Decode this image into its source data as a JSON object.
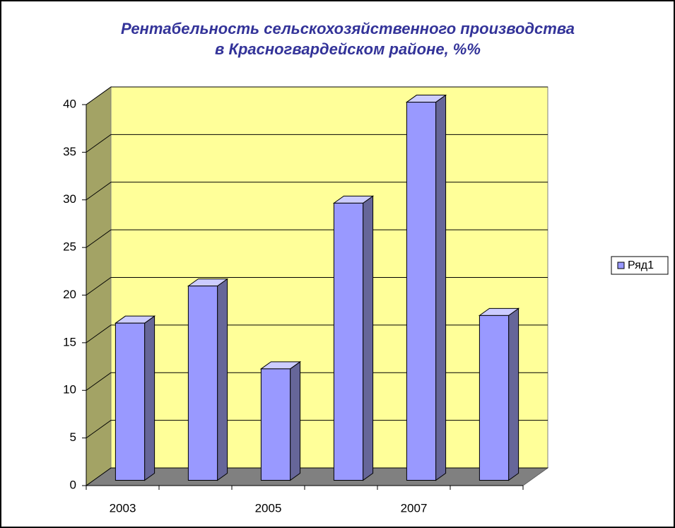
{
  "chart_data": {
    "type": "bar3d",
    "title": [
      "Рентабельность сельскохозяйственного производства",
      "в Красногвардейском районе, %%"
    ],
    "categories": [
      "2003",
      null,
      "2005",
      null,
      "2007",
      null
    ],
    "series": [
      {
        "name": "Ряд1",
        "color": "#9999ff",
        "values": [
          16.5,
          20.4,
          11.7,
          29.1,
          39.7,
          17.3
        ]
      }
    ],
    "ylim": [
      0,
      40
    ],
    "yticks": [
      0,
      5,
      10,
      15,
      20,
      25,
      30,
      35,
      40
    ],
    "grid": true,
    "legend": "right"
  }
}
